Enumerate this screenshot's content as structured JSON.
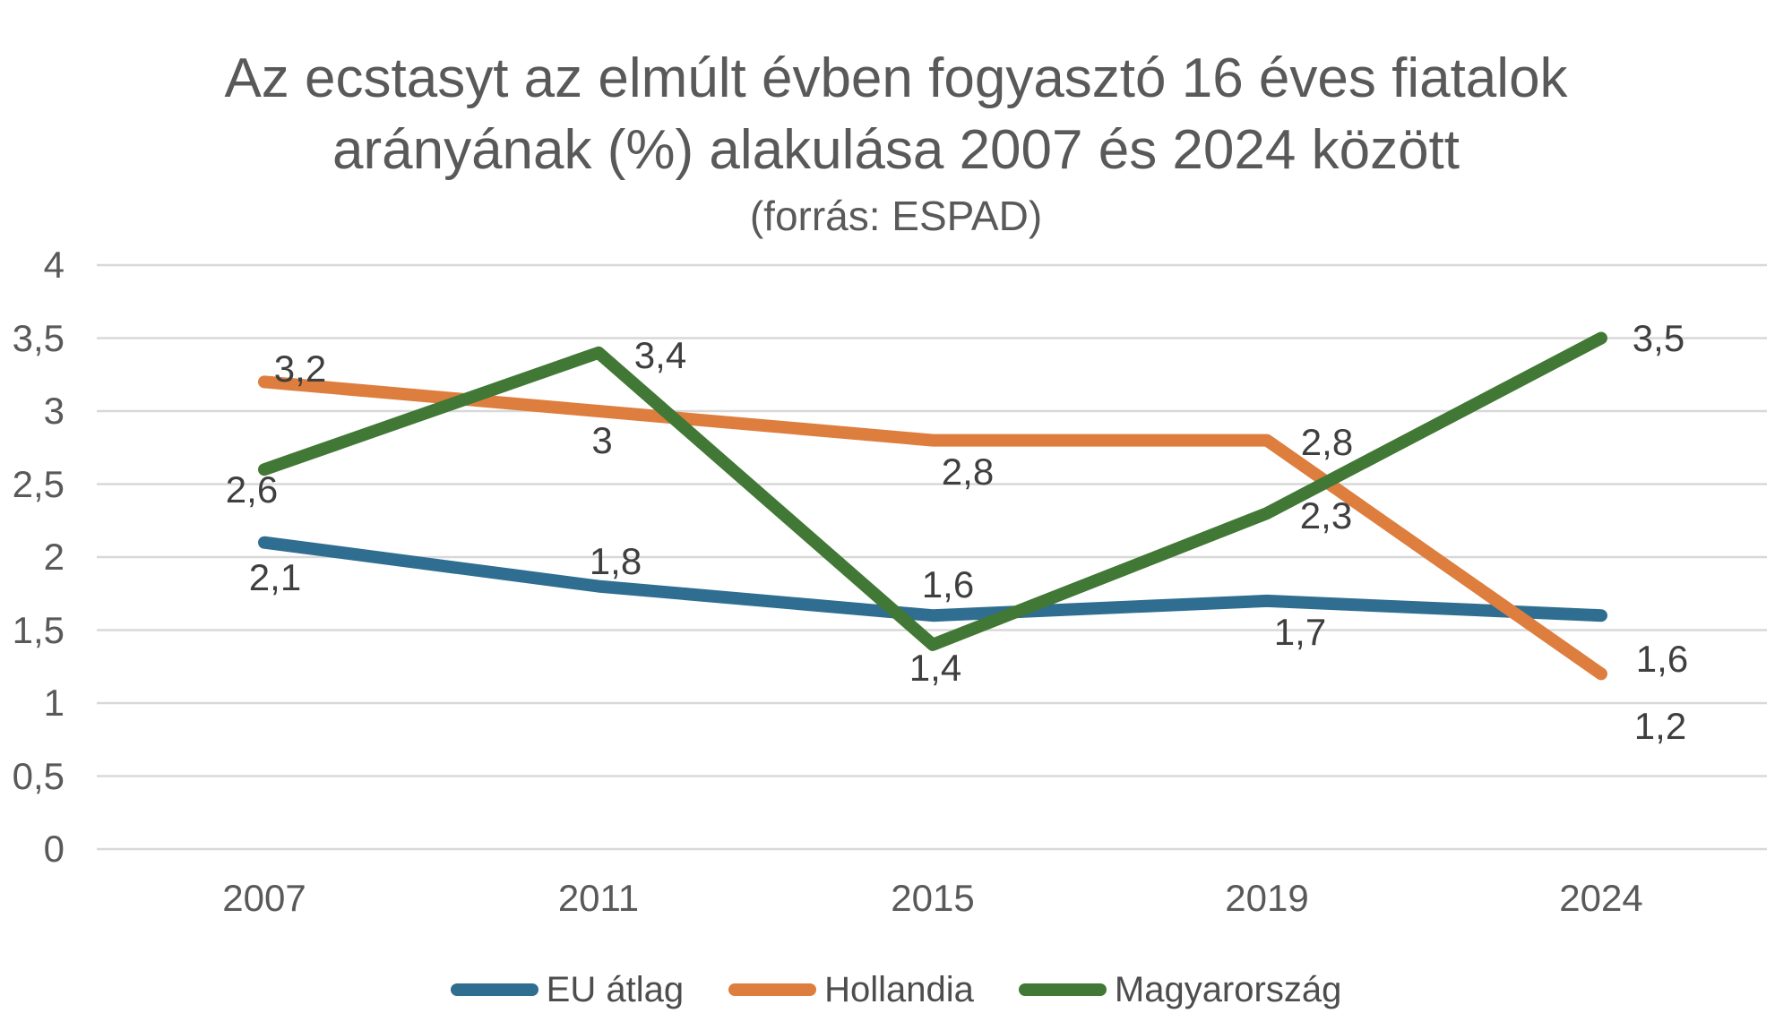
{
  "chart": {
    "title_line1": "Az ecstasyt az elmúlt évben fogyasztó 16 éves fiatalok",
    "title_line2": "arányának (%) alakulása 2007 és 2024 között",
    "subtitle": "(forrás: ESPAD)",
    "background_color": "#FFFFFF",
    "gridline_color": "#D8D8D8",
    "axis_label_color": "#595959",
    "data_label_color": "#3F3F3F",
    "title_color": "#595959"
  },
  "chart_data": {
    "type": "line",
    "title": "Az ecstasyt az elmúlt évben fogyasztó 16 éves fiatalok arányának (%) alakulása 2007 és 2024 között",
    "subtitle": "(forrás: ESPAD)",
    "categories": [
      "2007",
      "2011",
      "2015",
      "2019",
      "2024"
    ],
    "y_ticks": [
      {
        "label": "4",
        "value": 4
      },
      {
        "label": "3,5",
        "value": 3.5
      },
      {
        "label": "3",
        "value": 3
      },
      {
        "label": "2,5",
        "value": 2.5
      },
      {
        "label": "2",
        "value": 2
      },
      {
        "label": "1,5",
        "value": 1.5
      },
      {
        "label": "1",
        "value": 1
      },
      {
        "label": "0,5",
        "value": 0.5
      },
      {
        "label": "0",
        "value": 0
      }
    ],
    "ylim": [
      0,
      4
    ],
    "grid": true,
    "legend_position": "bottom",
    "series": [
      {
        "name": "EU átlag",
        "color": "#2F6E91",
        "values": [
          2.1,
          1.8,
          1.6,
          1.7,
          1.6
        ],
        "labels": [
          "2,1",
          "1,8",
          "1,6",
          "1,7",
          "1,6"
        ]
      },
      {
        "name": "Hollandia",
        "color": "#DE7E3E",
        "values": [
          3.2,
          3.0,
          2.8,
          2.8,
          1.2
        ],
        "labels": [
          "3,2",
          "3",
          "2,8",
          "2,8",
          "1,2"
        ]
      },
      {
        "name": "Magyarország",
        "color": "#417835",
        "values": [
          2.6,
          3.4,
          1.4,
          2.3,
          3.5
        ],
        "labels": [
          "2,6",
          "3,4",
          "1,4",
          "2,3",
          "3,5"
        ]
      }
    ]
  }
}
